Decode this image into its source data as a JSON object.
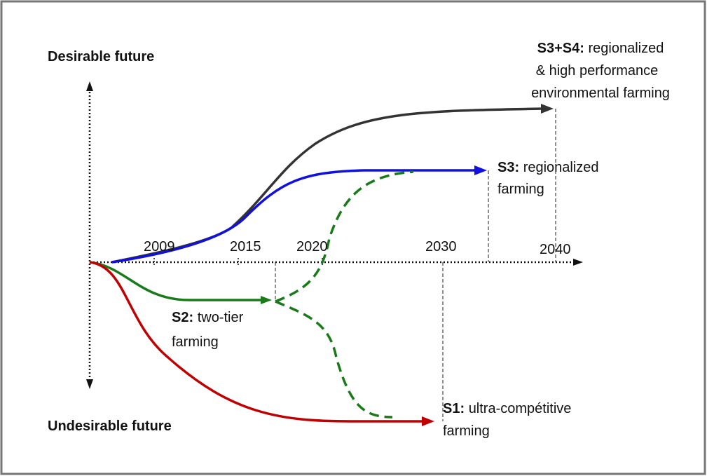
{
  "axis_labels": {
    "top": "Desirable future",
    "bottom": "Undesirable future"
  },
  "years": [
    "2009",
    "2015",
    "2020",
    "2030",
    "2040"
  ],
  "scenarios": [
    {
      "code": "S3+S4:",
      "lines": [
        "regionalized",
        "& high performance",
        "environmental farming"
      ]
    },
    {
      "code": "S3:",
      "lines": [
        "regionalized",
        "farming"
      ]
    },
    {
      "code": "S2:",
      "lines": [
        "two-tier",
        "farming"
      ]
    },
    {
      "code": "S1:",
      "lines": [
        "ultra-compétitive",
        "farming"
      ]
    }
  ]
}
